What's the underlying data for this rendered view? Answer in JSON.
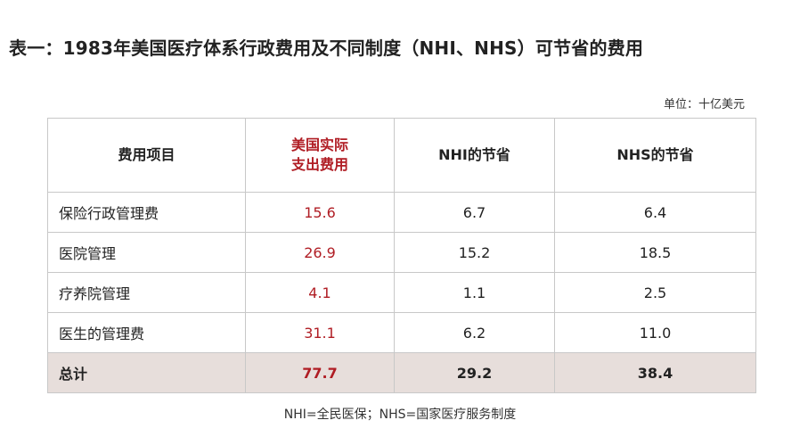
{
  "title": "表一：1983年美国医疗体系行政费用及不同制度（NHI、NHS）可节省的费用",
  "unit": "单位：十亿美元",
  "table": {
    "headers": {
      "item": "费用项目",
      "actual_line1": "美国实际",
      "actual_line2": "支出费用",
      "nhi": "NHI的节省",
      "nhs": "NHS的节省"
    },
    "rows": [
      {
        "item": "保险行政管理费",
        "actual": "15.6",
        "nhi": "6.7",
        "nhs": "6.4"
      },
      {
        "item": "医院管理",
        "actual": "26.9",
        "nhi": "15.2",
        "nhs": "18.5"
      },
      {
        "item": "疗养院管理",
        "actual": "4.1",
        "nhi": "1.1",
        "nhs": "2.5"
      },
      {
        "item": "医生的管理费",
        "actual": "31.1",
        "nhi": "6.2",
        "nhs": "11.0"
      }
    ],
    "total": {
      "item": "总计",
      "actual": "77.7",
      "nhi": "29.2",
      "nhs": "38.4"
    }
  },
  "footnote": "NHI=全民医保；NHS=国家医疗服务制度",
  "colors": {
    "accent_red": "#b01d24",
    "total_row_bg": "#e7dedb",
    "border": "#c8c8c8"
  }
}
